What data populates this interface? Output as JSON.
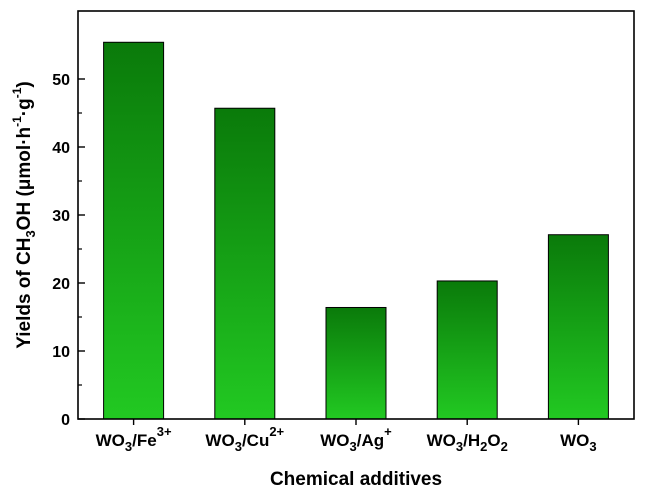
{
  "chart_data": {
    "type": "bar",
    "categories": [
      {
        "base": "WO",
        "sub": "3",
        "mid": "/Fe",
        "sup": "3+"
      },
      {
        "base": "WO",
        "sub": "3",
        "mid": "/Cu",
        "sup": "2+"
      },
      {
        "base": "WO",
        "sub": "3",
        "mid": "/Ag",
        "sup": "+"
      },
      {
        "base": "WO",
        "sub": "3",
        "mid": "/H",
        "sub2": "2",
        "mid2": "O",
        "sub3": "2"
      },
      {
        "base": "WO",
        "sub": "3"
      }
    ],
    "values": [
      55.4,
      45.7,
      16.4,
      20.3,
      27.1
    ],
    "ylim": [
      0,
      60
    ],
    "yticks": [
      "0",
      "10",
      "20",
      "30",
      "40",
      "50"
    ],
    "ytick_values": [
      0,
      10,
      20,
      30,
      40,
      50
    ],
    "xlabel": "Chemical additives",
    "ylabel": {
      "p1": "Yields of CH",
      "s1": "3",
      "p2": "OH (μmol·h",
      "e1": "-1",
      "p3": "·g",
      "e2": "-1",
      "p4": ")"
    },
    "bar_color_top": "#0a7a0a",
    "bar_color_bottom": "#22c922",
    "grid": false,
    "legend": "none"
  }
}
